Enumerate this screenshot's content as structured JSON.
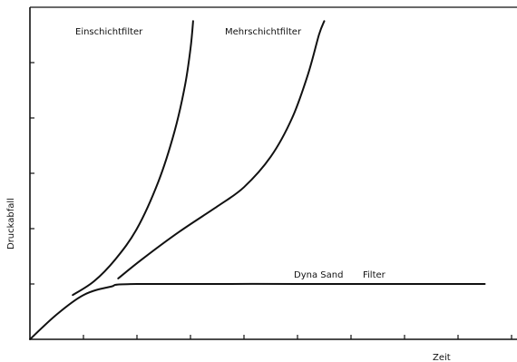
{
  "chart_data": {
    "type": "line",
    "title": "",
    "xlabel": "Zeit",
    "ylabel": "Druckabfall",
    "x_ticks_labeled": false,
    "y_ticks_labeled": false,
    "grid": false,
    "legend": "none",
    "xlim": [
      0,
      9
    ],
    "ylim": [
      0,
      6
    ],
    "series": [
      {
        "name": "Einschichtfilter",
        "color": "#111111",
        "values": [
          [
            0.8,
            0.8
          ],
          [
            1.2,
            1.05
          ],
          [
            1.6,
            1.45
          ],
          [
            2.0,
            2.0
          ],
          [
            2.4,
            2.85
          ],
          [
            2.7,
            3.75
          ],
          [
            2.9,
            4.6
          ],
          [
            3.0,
            5.25
          ],
          [
            3.05,
            5.75
          ]
        ]
      },
      {
        "name": "Mehrschichtfilter",
        "color": "#111111",
        "values": [
          [
            1.65,
            1.1
          ],
          [
            2.1,
            1.45
          ],
          [
            2.8,
            1.95
          ],
          [
            3.5,
            2.4
          ],
          [
            4.0,
            2.75
          ],
          [
            4.5,
            3.3
          ],
          [
            4.9,
            4.0
          ],
          [
            5.2,
            4.8
          ],
          [
            5.4,
            5.5
          ],
          [
            5.5,
            5.75
          ]
        ]
      },
      {
        "name": "DynaSand Filter",
        "label_words": [
          "Dyna Sand",
          "Filter"
        ],
        "color": "#111111",
        "values": [
          [
            0.0,
            0.0
          ],
          [
            0.5,
            0.45
          ],
          [
            1.0,
            0.8
          ],
          [
            1.5,
            0.95
          ],
          [
            2.0,
            1.0
          ],
          [
            5.0,
            1.0
          ],
          [
            8.5,
            1.0
          ]
        ]
      }
    ]
  }
}
